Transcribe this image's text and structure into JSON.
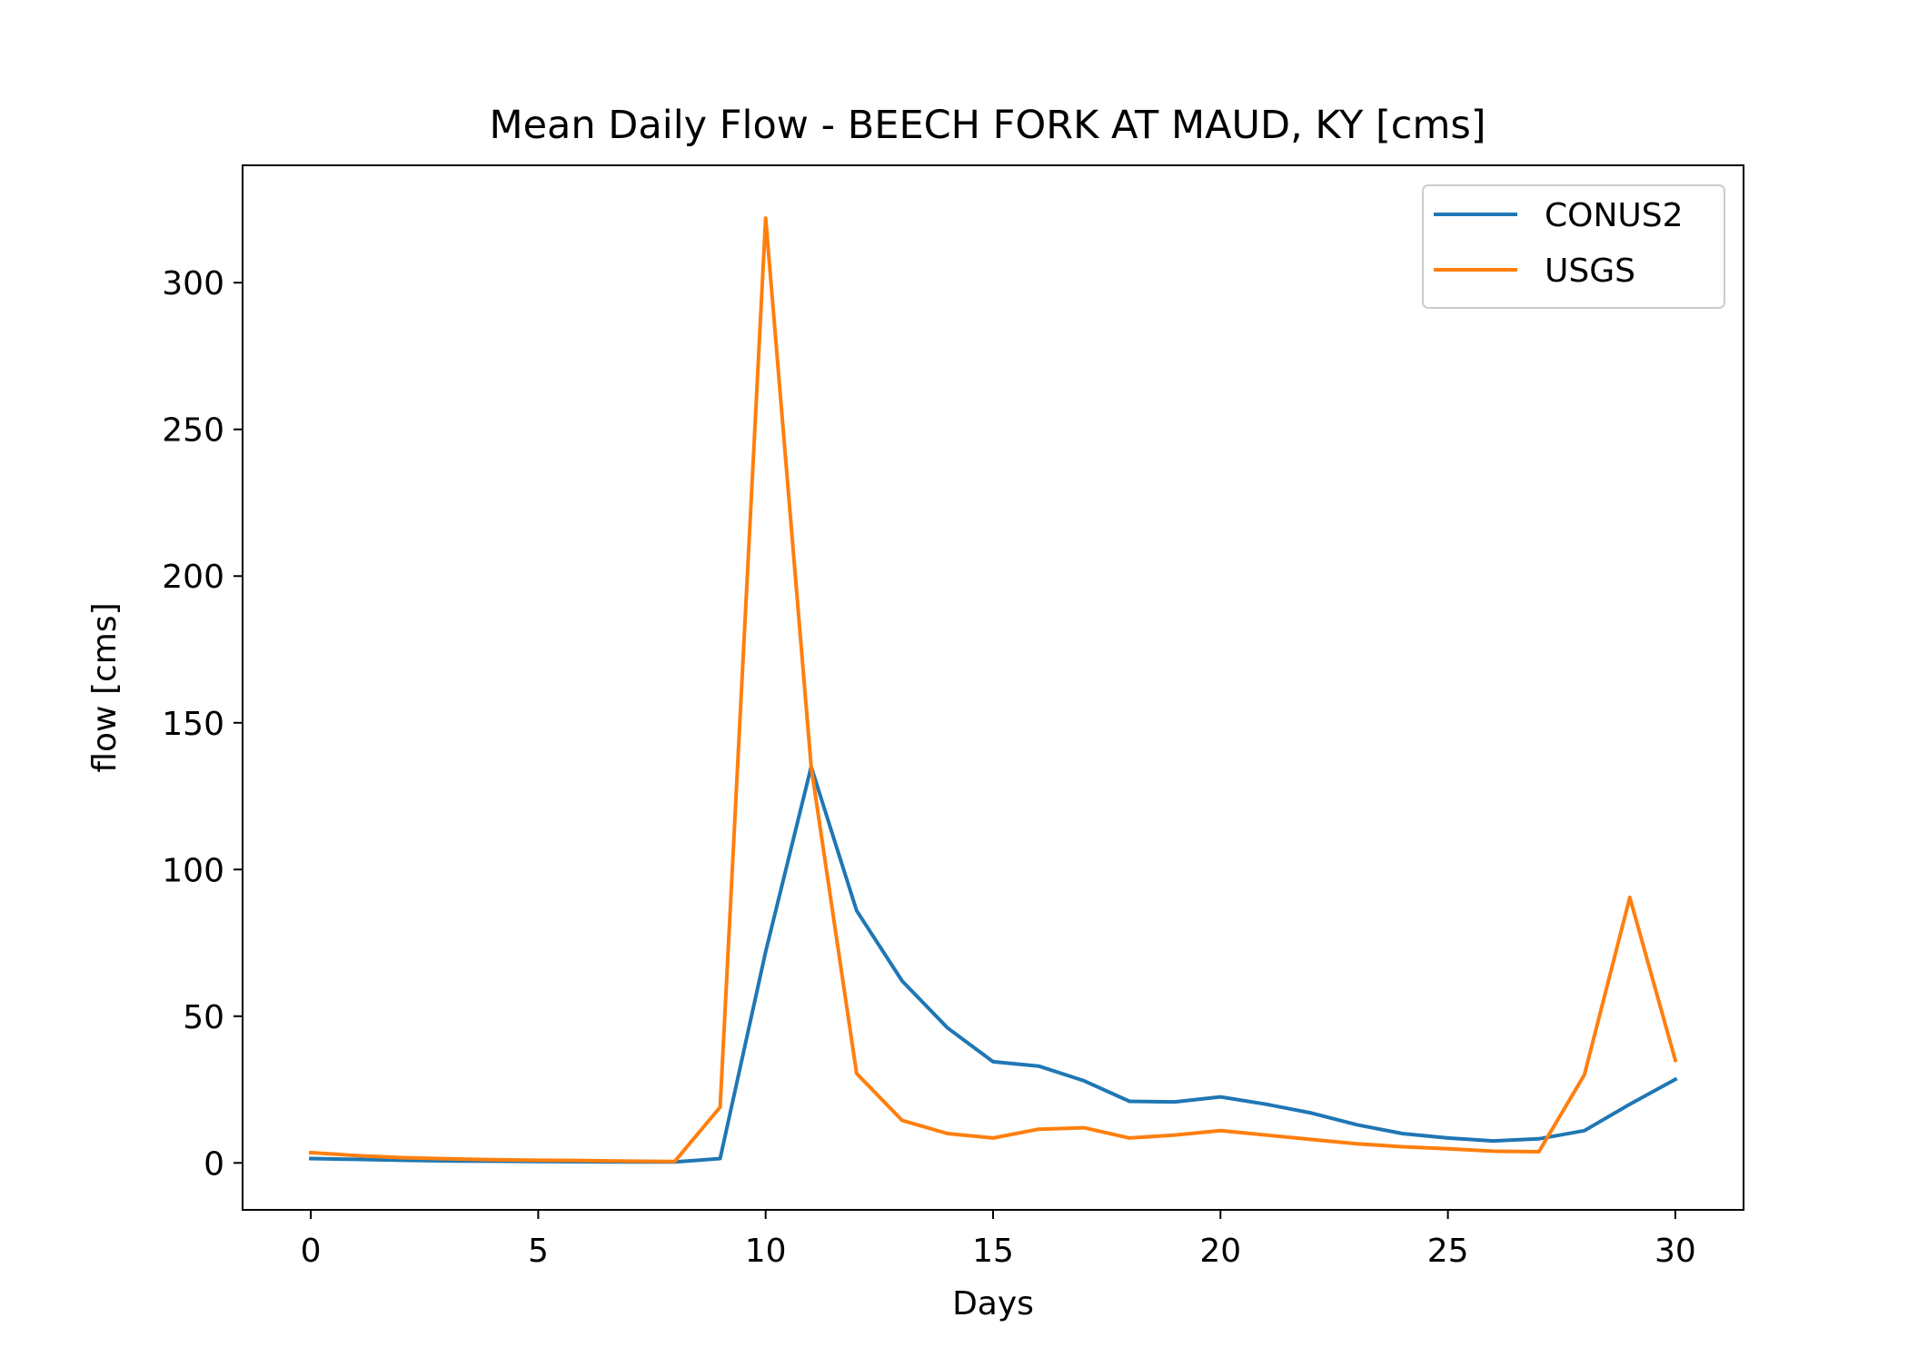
{
  "chart_data": {
    "type": "line",
    "title": "Mean Daily Flow - BEECH FORK AT MAUD, KY [cms]",
    "xlabel": "Days",
    "ylabel": "flow [cms]",
    "xlim": [
      -1.5,
      31.5
    ],
    "ylim": [
      -16,
      340
    ],
    "x_ticks": [
      0,
      5,
      10,
      15,
      20,
      25,
      30
    ],
    "x_tick_labels": [
      "0",
      "5",
      "10",
      "15",
      "20",
      "25",
      "30"
    ],
    "y_ticks": [
      0,
      50,
      100,
      150,
      200,
      250,
      300
    ],
    "y_tick_labels": [
      "0",
      "50",
      "100",
      "150",
      "200",
      "250",
      "300"
    ],
    "grid": false,
    "legend_position": "upper-right",
    "x": [
      0,
      1,
      2,
      3,
      4,
      5,
      6,
      7,
      8,
      9,
      10,
      11,
      12,
      13,
      14,
      15,
      16,
      17,
      18,
      19,
      20,
      21,
      22,
      23,
      24,
      25,
      26,
      27,
      28,
      29,
      30
    ],
    "series": [
      {
        "name": "CONUS2",
        "color": "#1f77b4",
        "values": [
          1.5,
          1.2,
          0.9,
          0.7,
          0.6,
          0.5,
          0.4,
          0.3,
          0.3,
          1.5,
          72,
          135,
          86,
          62,
          46,
          34.5,
          33,
          28,
          21,
          20.8,
          22.5,
          20,
          17,
          13,
          10,
          8.5,
          7.5,
          8.2,
          11,
          20,
          28.5
        ]
      },
      {
        "name": "USGS",
        "color": "#ff7f0e",
        "values": [
          3.5,
          2.5,
          1.8,
          1.4,
          1.1,
          0.9,
          0.8,
          0.6,
          0.5,
          19,
          322,
          135,
          30.5,
          14.5,
          10,
          8.5,
          11.5,
          12,
          8.5,
          9.5,
          11,
          9.5,
          8,
          6.5,
          5.5,
          4.8,
          4,
          3.8,
          30,
          90.5,
          35
        ]
      }
    ]
  }
}
